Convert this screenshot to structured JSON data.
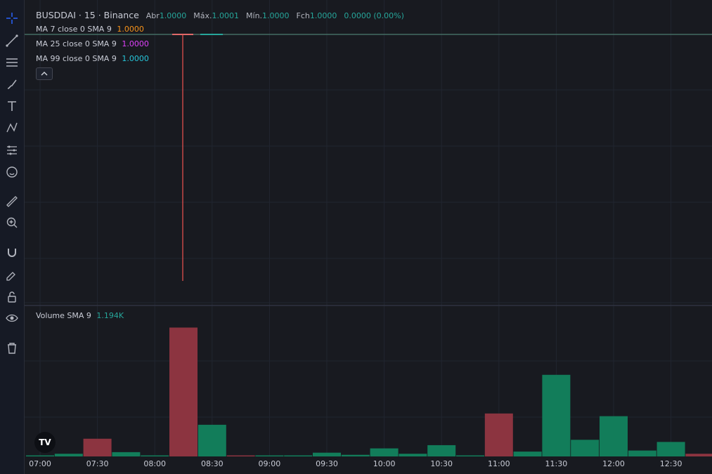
{
  "header": {
    "symbol": "BUSDDAI",
    "interval": "15",
    "exchange": "Binance",
    "title": "BUSDDAI · 15 · Binance",
    "open_label": "Abr",
    "open": "1.0000",
    "high_label": "Máx.",
    "high": "1.0001",
    "low_label": "Mín.",
    "low": "1.0000",
    "close_label": "Fch",
    "close": "1.0000",
    "change": "0.0000 (0.00%)"
  },
  "indicators": [
    {
      "label": "MA 7 close 0 SMA 9",
      "value": "1.0000",
      "color": "#f7931a"
    },
    {
      "label": "MA 25 close 0 SMA 9",
      "value": "1.0000",
      "color": "#e040fb"
    },
    {
      "label": "MA 99 close 0 SMA 9",
      "value": "1.0000",
      "color": "#26c6da"
    }
  ],
  "volume": {
    "label": "Volume SMA 9",
    "value": "1.194K",
    "value_color": "#26a69a"
  },
  "time_axis": [
    "07:00",
    "07:30",
    "08:00",
    "08:30",
    "09:00",
    "09:30",
    "10:00",
    "10:30",
    "11:00",
    "11:30",
    "12:00",
    "12:30"
  ],
  "logo": {
    "text": "TV"
  },
  "toolbar": [
    "crosshair-icon",
    "trend-line-icon",
    "horizontal-lines-icon",
    "brush-icon",
    "text-icon",
    "pattern-icon",
    "measure-lines-icon",
    "emoji-icon",
    "ruler-icon",
    "zoom-in-icon",
    "magnet-icon",
    "pencil-lock-icon",
    "lock-icon",
    "eye-icon",
    "trash-icon"
  ],
  "colors": {
    "up": "#127d5a",
    "down": "#8c3440",
    "background": "#181a20",
    "grid": "#222631"
  },
  "chart_data": {
    "type": "bar",
    "title": "Volume",
    "x": [
      "07:00",
      "07:15",
      "07:30",
      "07:45",
      "08:00",
      "08:15",
      "08:30",
      "08:45",
      "09:00",
      "09:15",
      "09:30",
      "09:45",
      "10:00",
      "10:15",
      "10:30",
      "10:45",
      "11:00",
      "11:15",
      "11:30",
      "11:45",
      "12:00",
      "12:15",
      "12:30",
      "12:45"
    ],
    "values": [
      0.02,
      0.05,
      0.33,
      0.08,
      0.0,
      2.4,
      0.59,
      0.01,
      0.0,
      0.02,
      0.07,
      0.03,
      0.15,
      0.05,
      0.21,
      0.01,
      0.8,
      0.09,
      1.52,
      0.31,
      0.75,
      0.11,
      0.27,
      0.05
    ],
    "directions": [
      "up",
      "up",
      "down",
      "up",
      "up",
      "down",
      "up",
      "down",
      "up",
      "up",
      "up",
      "up",
      "up",
      "up",
      "up",
      "up",
      "down",
      "up",
      "up",
      "up",
      "up",
      "up",
      "up",
      "down"
    ],
    "ymax": 2.55,
    "price_candle": {
      "time": "08:15",
      "open": 1.0,
      "high": 1.0,
      "low": 0.999,
      "close": 1.0
    }
  }
}
